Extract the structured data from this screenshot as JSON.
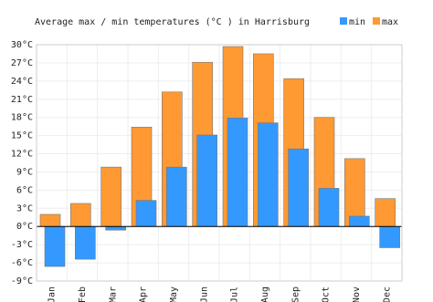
{
  "chart_data": {
    "type": "bar",
    "title": "Average max / min temperatures (°C ) in Harrisburg",
    "categories": [
      "Jan",
      "Feb",
      "Mar",
      "Apr",
      "May",
      "Jun",
      "Jul",
      "Aug",
      "Sep",
      "Oct",
      "Nov",
      "Dec"
    ],
    "series": [
      {
        "name": "min",
        "color": "#3399ff",
        "values": [
          -6.6,
          -5.4,
          -0.6,
          4.3,
          9.8,
          15.1,
          17.9,
          17.1,
          12.8,
          6.3,
          1.7,
          -3.5
        ]
      },
      {
        "name": "max",
        "color": "#ff9933",
        "values": [
          2.0,
          3.8,
          9.8,
          16.4,
          22.2,
          27.1,
          29.7,
          28.5,
          24.4,
          18.0,
          11.2,
          4.6
        ]
      }
    ],
    "ylim": [
      -9,
      30
    ],
    "yticks": [
      {
        "value": -9,
        "label": "-9°C"
      },
      {
        "value": -6,
        "label": "-6°C"
      },
      {
        "value": -3,
        "label": "-3°C"
      },
      {
        "value": 0,
        "label": "0°C"
      },
      {
        "value": 3,
        "label": "3°C"
      },
      {
        "value": 6,
        "label": "6°C"
      },
      {
        "value": 9,
        "label": "9°C"
      },
      {
        "value": 12,
        "label": "12°C"
      },
      {
        "value": 15,
        "label": "15°C"
      },
      {
        "value": 18,
        "label": "18°C"
      },
      {
        "value": 21,
        "label": "21°C"
      },
      {
        "value": 24,
        "label": "24°C"
      },
      {
        "value": 27,
        "label": "27°C"
      },
      {
        "value": 30,
        "label": "30°C"
      }
    ],
    "grid": true
  }
}
